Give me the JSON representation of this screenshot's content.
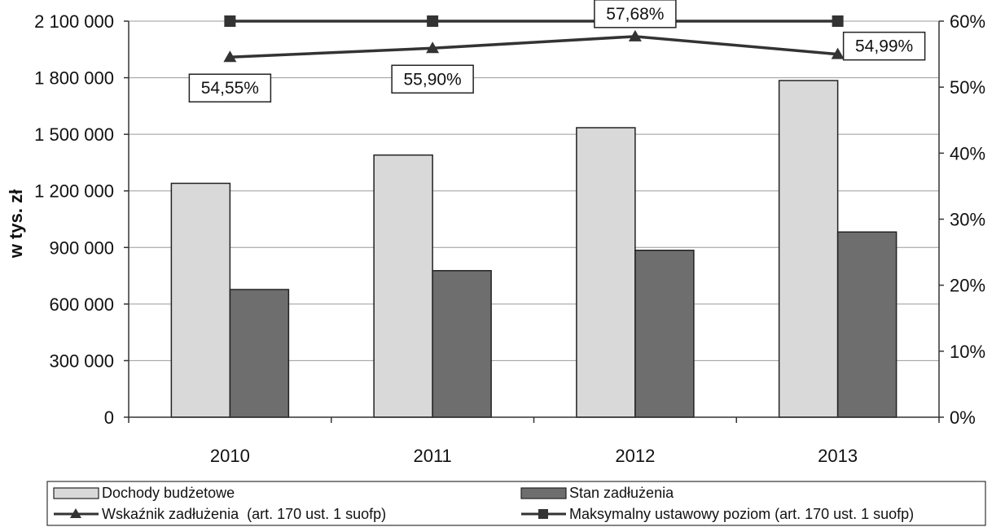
{
  "chart_data": {
    "type": "bar",
    "categories": [
      "2010",
      "2011",
      "2012",
      "2013"
    ],
    "ylabel": "w tys. zł",
    "ylim": [
      0,
      2100000
    ],
    "y2lim": [
      0,
      60
    ],
    "y_ticks": [
      "0",
      "300 000",
      "600 000",
      "900 000",
      "1 200 000",
      "1 500 000",
      "1 800 000",
      "2 100 000"
    ],
    "y2_ticks": [
      "0%",
      "10%",
      "20%",
      "30%",
      "40%",
      "50%",
      "60%"
    ],
    "grid": "horizontal",
    "legend_position": "bottom",
    "series": [
      {
        "name": "Dochody budżetowe",
        "kind": "bar",
        "axis": "left",
        "color": "#d9d9d9",
        "values": [
          1240000,
          1390000,
          1535000,
          1785000
        ]
      },
      {
        "name": "Stan zadłużenia",
        "kind": "bar",
        "axis": "left",
        "color": "#6e6e6e",
        "values": [
          677000,
          777000,
          885000,
          982000
        ]
      },
      {
        "name": "Wskaźnik zadłużenia  (art. 170 ust. 1 suofp)",
        "kind": "line",
        "axis": "right",
        "marker": "triangle",
        "color": "#333333",
        "values": [
          54.55,
          55.9,
          57.68,
          54.99
        ],
        "labels": [
          "54,55%",
          "55,90%",
          "57,68%",
          "54,99%"
        ]
      },
      {
        "name": "Maksymalny ustawowy poziom (art. 170 ust. 1 suofp)",
        "kind": "line",
        "axis": "right",
        "marker": "square",
        "color": "#333333",
        "values": [
          60,
          60,
          60,
          60
        ]
      }
    ]
  }
}
